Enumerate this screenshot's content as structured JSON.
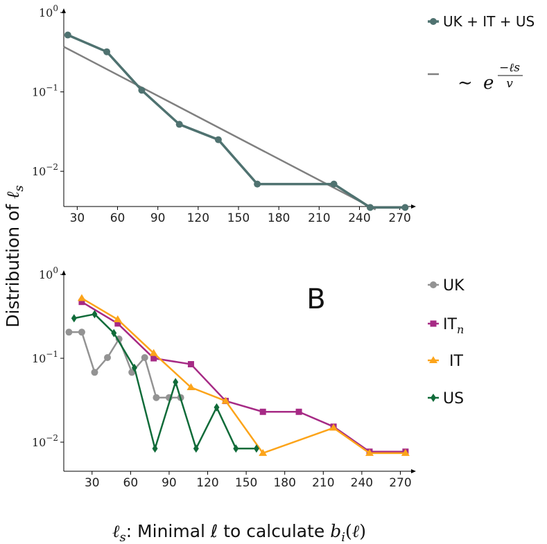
{
  "ylabel": "Distribution of ℓs",
  "xlabel": {
    "prefix": "ℓs: ",
    "text": "Minimal ℓ to calculate ",
    "suffix": "bi(ℓ)"
  },
  "chart_data": [
    {
      "type": "line",
      "panel": "top",
      "yscale": "log",
      "xlim": [
        20,
        280
      ],
      "ylim": [
        0.0036,
        1.0
      ],
      "xticks": [
        30,
        60,
        90,
        120,
        150,
        180,
        210,
        240,
        270
      ],
      "yticks": [
        {
          "value": 1,
          "base": "10",
          "exp": "0"
        },
        {
          "value": 0.1,
          "base": "10",
          "exp": "−1"
        },
        {
          "value": 0.01,
          "base": "10",
          "exp": "−2"
        }
      ],
      "series": [
        {
          "name": "UK + IT + US",
          "color": "#4f7270",
          "marker": "circle",
          "x": [
            23,
            52,
            78,
            106,
            135,
            164,
            221,
            248,
            274
          ],
          "y": [
            0.52,
            0.32,
            0.105,
            0.039,
            0.025,
            0.0069,
            0.0069,
            0.0035,
            0.0035
          ]
        }
      ],
      "fit": {
        "legend_label": "∼ e^(−ℓs/v)",
        "color": "#808080",
        "x": [
          20,
          252
        ],
        "y": [
          0.37,
          0.0033
        ]
      }
    },
    {
      "type": "line",
      "panel": "bottom",
      "panel_label": "B",
      "yscale": "log",
      "xlim": [
        8,
        280
      ],
      "ylim": [
        0.0045,
        1.0
      ],
      "xticks": [
        30,
        60,
        90,
        120,
        150,
        180,
        210,
        240,
        270
      ],
      "yticks": [
        {
          "value": 1,
          "base": "10",
          "exp": "0"
        },
        {
          "value": 0.1,
          "base": "10",
          "exp": "−1"
        },
        {
          "value": 0.01,
          "base": "10",
          "exp": "−2"
        }
      ],
      "series": [
        {
          "name": "UK",
          "color": "#939393",
          "marker": "circle",
          "x": [
            12,
            22,
            32,
            42,
            51,
            61,
            71,
            80,
            90,
            99
          ],
          "y": [
            0.205,
            0.205,
            0.068,
            0.102,
            0.17,
            0.068,
            0.102,
            0.034,
            0.034,
            0.034
          ]
        },
        {
          "name": "ITn",
          "color": "#a62a85",
          "marker": "square",
          "x": [
            22,
            50,
            78,
            107,
            134,
            163,
            191,
            218,
            246,
            274
          ],
          "y": [
            0.47,
            0.26,
            0.1,
            0.085,
            0.031,
            0.023,
            0.023,
            0.0153,
            0.0077,
            0.0077
          ]
        },
        {
          "name": "IT",
          "color": "#fca41a",
          "marker": "triangle",
          "x": [
            22,
            50,
            78,
            107,
            134,
            163,
            218,
            246,
            274
          ],
          "y": [
            0.52,
            0.29,
            0.115,
            0.045,
            0.031,
            0.0074,
            0.0148,
            0.0074,
            0.0074
          ]
        },
        {
          "name": "US",
          "color": "#106b39",
          "marker": "diamond",
          "x": [
            16,
            32,
            47,
            63,
            79,
            95,
            111,
            127,
            142,
            158
          ],
          "y": [
            0.3,
            0.336,
            0.2,
            0.077,
            0.0084,
            0.052,
            0.0084,
            0.026,
            0.0084,
            0.0084
          ]
        }
      ]
    }
  ]
}
